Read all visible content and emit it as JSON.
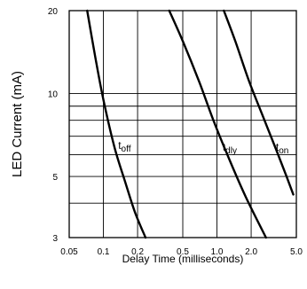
{
  "chart_data": {
    "type": "line",
    "title": "",
    "xlabel": "Delay Time (milliseconds)",
    "ylabel": "LED Current (mA)",
    "x_scale": "log",
    "y_scale": "log",
    "xlim": [
      0.05,
      5.0
    ],
    "ylim": [
      3,
      20
    ],
    "x_ticks": [
      "0.05",
      "0.1",
      "0.2",
      "0.5",
      "1.0",
      "2.0",
      "5.0"
    ],
    "y_ticks": [
      "3",
      "5",
      "10",
      "20"
    ],
    "grid": true,
    "series": [
      {
        "name": "toff",
        "label_main": "t",
        "label_sub": "off",
        "x": [
          0.072,
          0.085,
          0.1,
          0.125,
          0.155,
          0.19,
          0.235
        ],
        "y": [
          20,
          13.5,
          9.5,
          6.4,
          4.8,
          3.7,
          3
        ]
      },
      {
        "name": "tdly",
        "label_main": "t",
        "label_sub": "dly",
        "x": [
          0.38,
          0.5,
          0.7,
          0.93,
          1.3,
          1.8,
          2.7
        ],
        "y": [
          20,
          15.5,
          11.0,
          8.0,
          5.7,
          4.2,
          3
        ]
      },
      {
        "name": "ton",
        "label_main": "t",
        "label_sub": "on",
        "x": [
          1.15,
          1.45,
          1.9,
          2.5,
          3.3,
          4.1,
          4.7
        ],
        "y": [
          20,
          15.5,
          11.2,
          8.4,
          6.3,
          5.0,
          4.3
        ]
      }
    ]
  }
}
